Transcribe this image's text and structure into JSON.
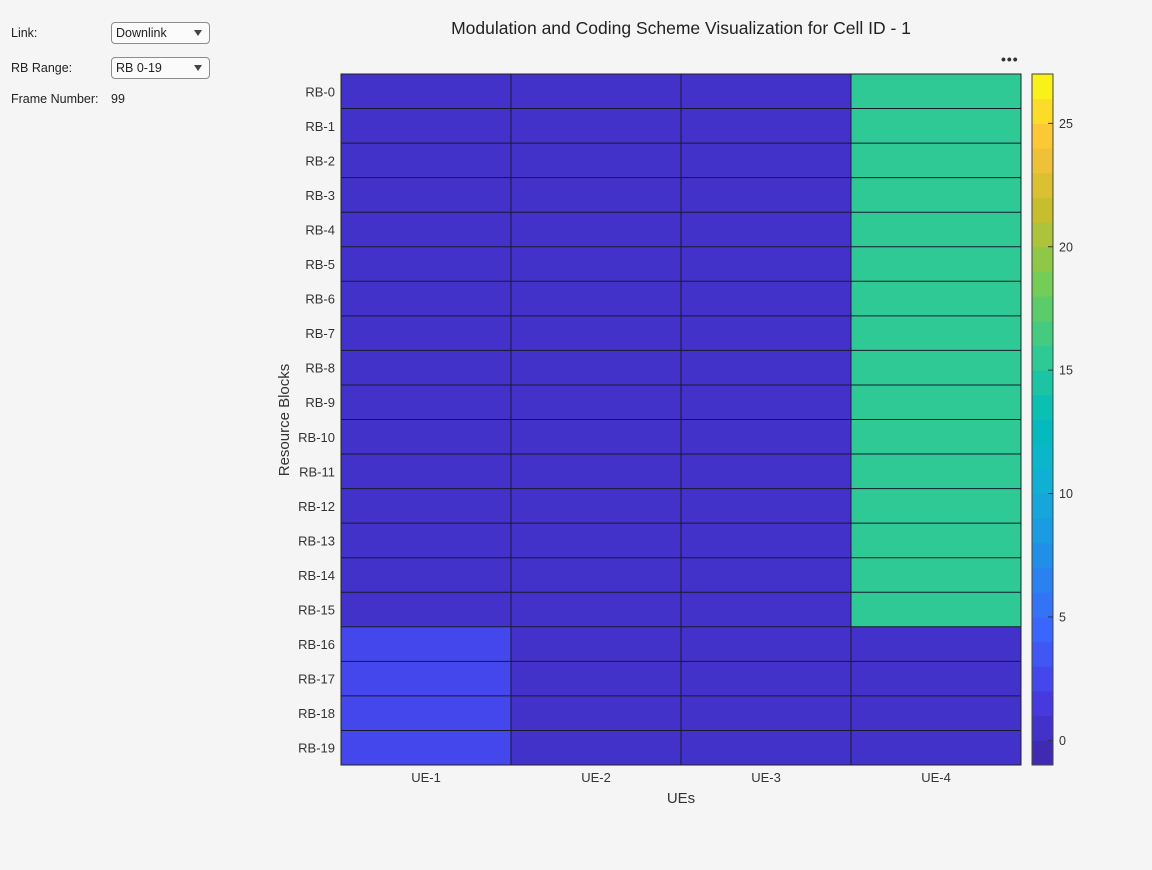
{
  "controls": {
    "link_label": "Link:",
    "link_value": "Downlink",
    "rb_range_label": "RB Range:",
    "rb_range_value": "RB 0-19",
    "frame_number_label": "Frame Number:",
    "frame_number_value": "99"
  },
  "chart_data": {
    "type": "heatmap",
    "title": "Modulation and Coding Scheme Visualization for Cell ID - 1",
    "xlabel": "UEs",
    "ylabel": "Resource Blocks",
    "x_categories": [
      "UE-1",
      "UE-2",
      "UE-3",
      "UE-4"
    ],
    "y_categories": [
      "RB-0",
      "RB-1",
      "RB-2",
      "RB-3",
      "RB-4",
      "RB-5",
      "RB-6",
      "RB-7",
      "RB-8",
      "RB-9",
      "RB-10",
      "RB-11",
      "RB-12",
      "RB-13",
      "RB-14",
      "RB-15",
      "RB-16",
      "RB-17",
      "RB-18",
      "RB-19"
    ],
    "values": [
      [
        0,
        0,
        0,
        15
      ],
      [
        0,
        0,
        0,
        15
      ],
      [
        0,
        0,
        0,
        15
      ],
      [
        0,
        0,
        0,
        15
      ],
      [
        0,
        0,
        0,
        15
      ],
      [
        0,
        0,
        0,
        15
      ],
      [
        0,
        0,
        0,
        15
      ],
      [
        0,
        0,
        0,
        15
      ],
      [
        0,
        0,
        0,
        15
      ],
      [
        0,
        0,
        0,
        15
      ],
      [
        0,
        0,
        0,
        15
      ],
      [
        0,
        0,
        0,
        15
      ],
      [
        0,
        0,
        0,
        15
      ],
      [
        0,
        0,
        0,
        15
      ],
      [
        0,
        0,
        0,
        15
      ],
      [
        0,
        0,
        0,
        15
      ],
      [
        2,
        0,
        0,
        0
      ],
      [
        2,
        0,
        0,
        0
      ],
      [
        2,
        0,
        0,
        0
      ],
      [
        2,
        0,
        0,
        0
      ]
    ],
    "colorbar": {
      "range": [
        -1,
        27
      ],
      "ticks": [
        0,
        5,
        10,
        15,
        20,
        25
      ],
      "tick_labels": [
        "0",
        "5",
        "10",
        "15",
        "20",
        "25"
      ],
      "colormap": "parula",
      "levels": 28
    }
  }
}
